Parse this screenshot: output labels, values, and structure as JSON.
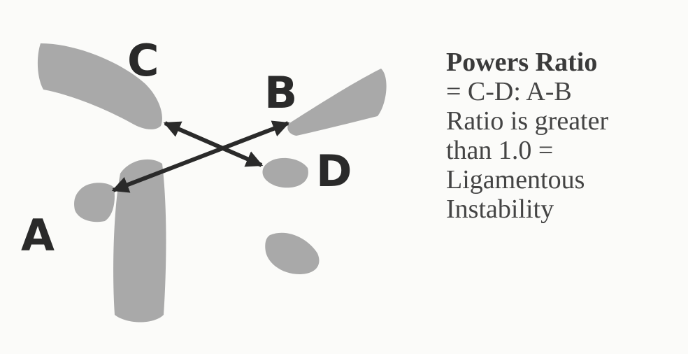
{
  "labels": {
    "a": "A",
    "b": "B",
    "c": "C",
    "d": "D"
  },
  "title": "Powers Ratio",
  "lines": [
    "= C-D: A-B",
    "Ratio is greater",
    "than 1.0 =",
    "Ligamentous",
    "Instability"
  ],
  "colors": {
    "bone": "#a9a9a9",
    "arrow": "#2a2a2a",
    "text": "#444444",
    "background": "#fbfbf9"
  }
}
